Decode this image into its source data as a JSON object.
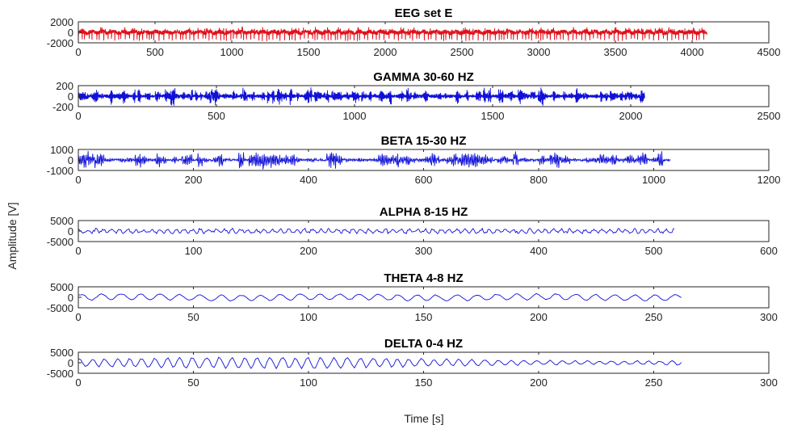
{
  "chart_data": [
    {
      "type": "line",
      "title": "EEG set E",
      "color": "#e0101a",
      "xlim": [
        0,
        4500
      ],
      "x_ticks": [
        0,
        500,
        1000,
        1500,
        2000,
        2500,
        3000,
        3500,
        4000,
        4500
      ],
      "ylim": [
        -2000,
        2000
      ],
      "y_ticks": [
        2000,
        0,
        -2000
      ],
      "samples": 4097,
      "character": "spiky"
    },
    {
      "type": "line",
      "title": "GAMMA 30-60 HZ",
      "color": "#1010d8",
      "xlim": [
        0,
        2500
      ],
      "x_ticks": [
        0,
        500,
        1000,
        1500,
        2000,
        2500
      ],
      "ylim": [
        -200,
        200
      ],
      "y_ticks": [
        200,
        0,
        -200
      ],
      "samples": 2052,
      "character": "bursty"
    },
    {
      "type": "line",
      "title": "BETA 15-30 HZ",
      "color": "#1010d8",
      "xlim": [
        0,
        1200
      ],
      "x_ticks": [
        0,
        200,
        400,
        600,
        800,
        1000,
        1200
      ],
      "ylim": [
        -1000,
        1000
      ],
      "y_ticks": [
        1000,
        0,
        -1000
      ],
      "samples": 1030,
      "character": "bursty"
    },
    {
      "type": "line",
      "title": "ALPHA 8-15 HZ",
      "color": "#1010d8",
      "xlim": [
        0,
        600
      ],
      "x_ticks": [
        0,
        100,
        200,
        300,
        400,
        500,
        600
      ],
      "ylim": [
        -5000,
        5000
      ],
      "y_ticks": [
        5000,
        0,
        -5000
      ],
      "samples": 519,
      "character": "smallwave"
    },
    {
      "type": "line",
      "title": "THETA 4-8 HZ",
      "color": "#1010d8",
      "xlim": [
        0,
        300
      ],
      "x_ticks": [
        0,
        50,
        100,
        150,
        200,
        250,
        300
      ],
      "ylim": [
        -5000,
        5000
      ],
      "y_ticks": [
        5000,
        0,
        -5000
      ],
      "samples": 263,
      "character": "wave"
    },
    {
      "type": "line",
      "title": "DELTA 0-4 HZ",
      "color": "#1010d8",
      "xlim": [
        0,
        300
      ],
      "x_ticks": [
        0,
        50,
        100,
        150,
        200,
        250,
        300
      ],
      "ylim": [
        -5000,
        5000
      ],
      "y_ticks": [
        5000,
        0,
        -5000
      ],
      "samples": 263,
      "character": "bigwave"
    }
  ],
  "ylabel": "Amplitude [V]",
  "xlabel": "Time [s]"
}
